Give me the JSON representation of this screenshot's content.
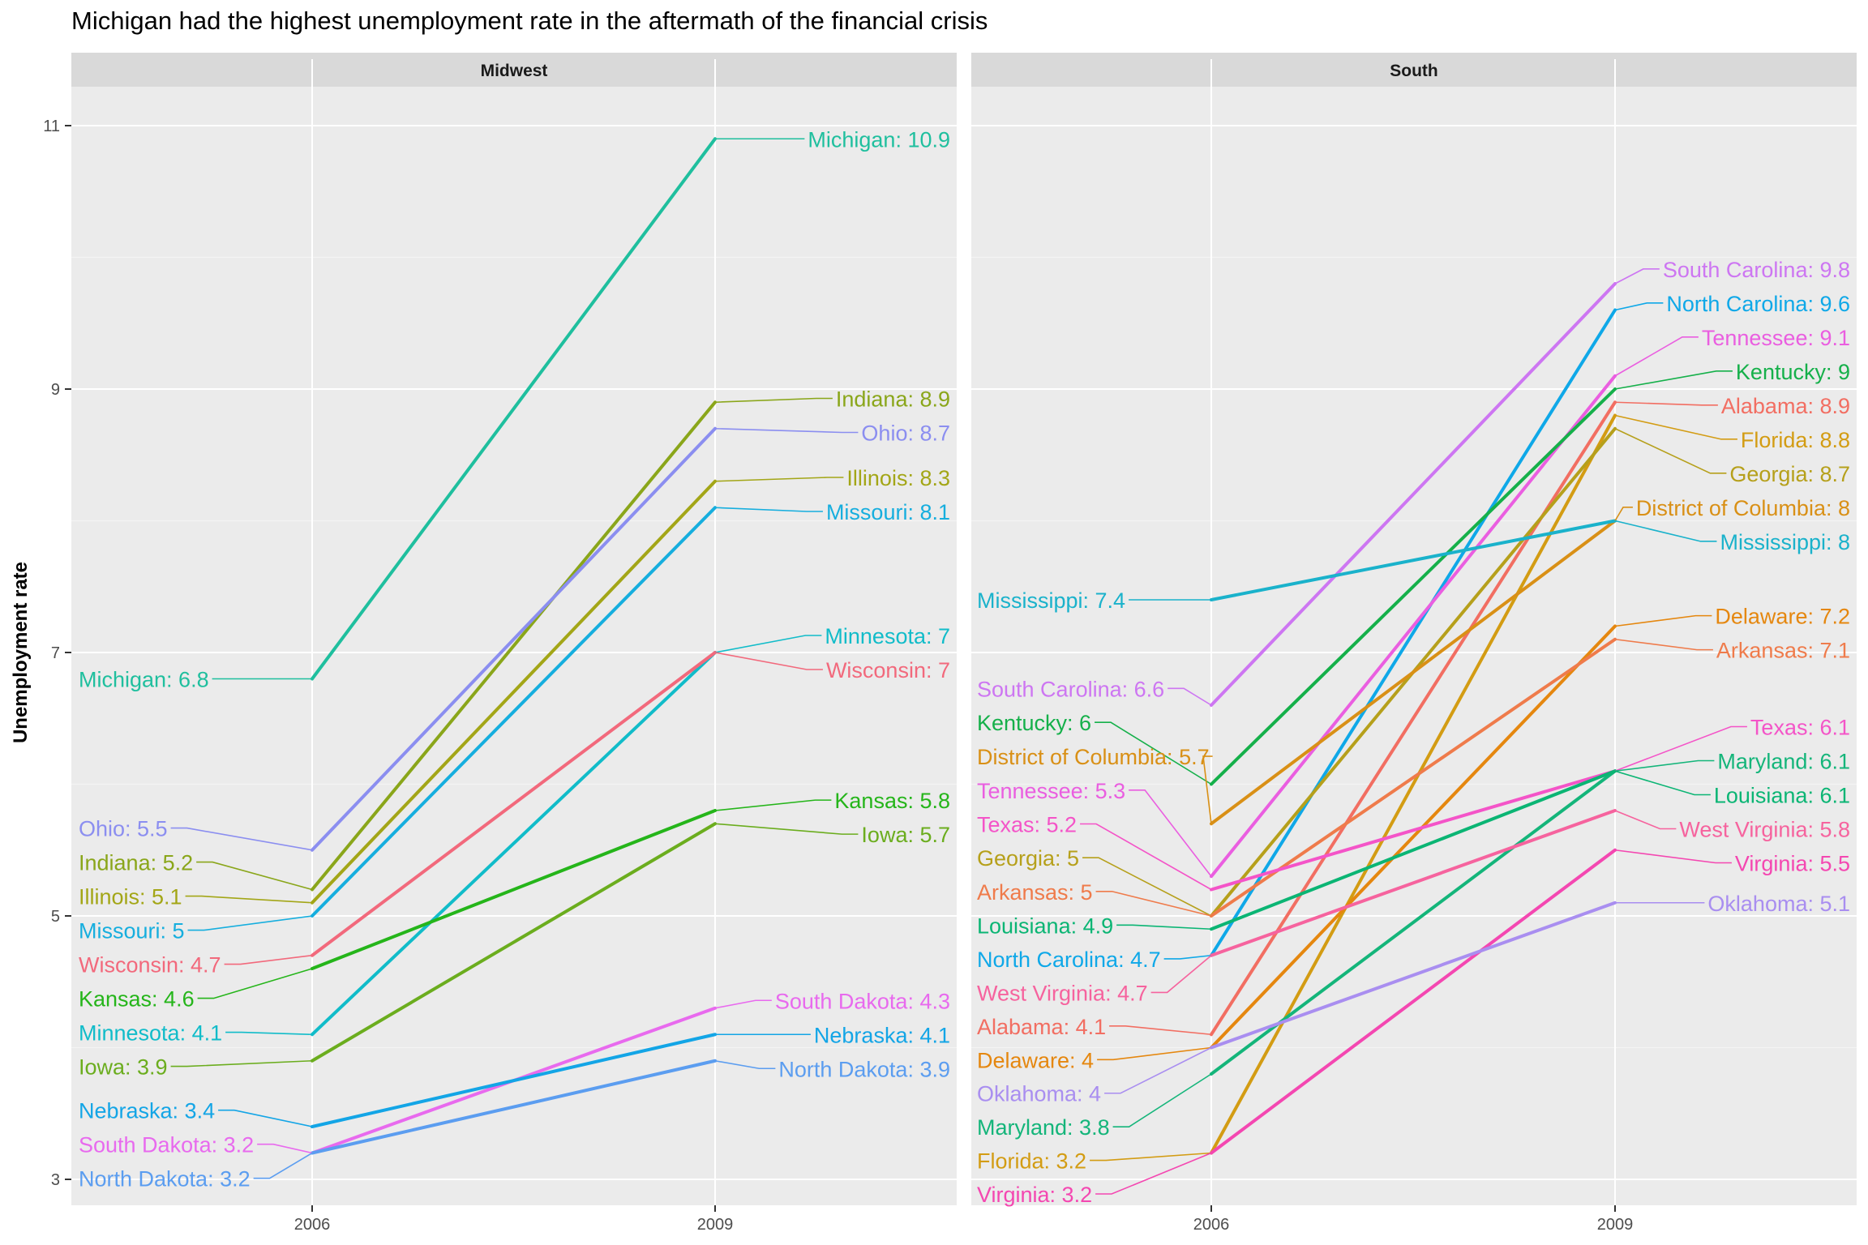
{
  "chart_data": {
    "type": "line",
    "title": "Michigan had the highest unemployment rate in the aftermath of the financial crisis",
    "xlabel": "",
    "ylabel": "Unemployment rate",
    "x": [
      "2006",
      "2009"
    ],
    "y_ticks": [
      "3",
      "5",
      "7",
      "9",
      "11"
    ],
    "ylim": [
      3,
      11
    ],
    "grid": true,
    "legend": "none",
    "panels": [
      {
        "name": "Midwest",
        "series": [
          {
            "name": "Michigan",
            "values": [
              6.8,
              10.9
            ],
            "color": "#1fbf9e",
            "left_label": "Michigan: 6.8",
            "right_label": "Michigan: 10.9"
          },
          {
            "name": "Indiana",
            "values": [
              5.2,
              8.9
            ],
            "color": "#8aa61a",
            "left_label": "Indiana: 5.2",
            "right_label": "Indiana: 8.9"
          },
          {
            "name": "Ohio",
            "values": [
              5.5,
              8.7
            ],
            "color": "#8b8ef0",
            "left_label": "Ohio: 5.5",
            "right_label": "Ohio: 8.7"
          },
          {
            "name": "Illinois",
            "values": [
              5.1,
              8.3
            ],
            "color": "#a3a617",
            "left_label": "Illinois: 5.1",
            "right_label": "Illinois: 8.3"
          },
          {
            "name": "Missouri",
            "values": [
              5,
              8.1
            ],
            "color": "#16aede",
            "left_label": "Missouri: 5",
            "right_label": "Missouri: 8.1"
          },
          {
            "name": "Minnesota",
            "values": [
              4.1,
              7
            ],
            "color": "#11bcc9",
            "left_label": "Minnesota: 4.1",
            "right_label": "Minnesota: 7"
          },
          {
            "name": "Wisconsin",
            "values": [
              4.7,
              7
            ],
            "color": "#f2697c",
            "left_label": "Wisconsin: 4.7",
            "right_label": "Wisconsin: 7"
          },
          {
            "name": "Kansas",
            "values": [
              4.6,
              5.8
            ],
            "color": "#25b51a",
            "left_label": "Kansas: 4.6",
            "right_label": "Kansas: 5.8"
          },
          {
            "name": "Iowa",
            "values": [
              3.9,
              5.7
            ],
            "color": "#6bad1e",
            "left_label": "Iowa: 3.9",
            "right_label": "Iowa: 5.7"
          },
          {
            "name": "South Dakota",
            "values": [
              3.2,
              4.3
            ],
            "color": "#e86aee",
            "left_label": "South Dakota: 3.2",
            "right_label": "South Dakota: 4.3"
          },
          {
            "name": "Nebraska",
            "values": [
              3.4,
              4.1
            ],
            "color": "#13a5e6",
            "left_label": "Nebraska: 3.4",
            "right_label": "Nebraska: 4.1"
          },
          {
            "name": "North Dakota",
            "values": [
              3.2,
              3.9
            ],
            "color": "#5b9df0",
            "left_label": "North Dakota: 3.2",
            "right_label": "North Dakota: 3.9"
          }
        ]
      },
      {
        "name": "South",
        "series": [
          {
            "name": "South Carolina",
            "values": [
              6.6,
              9.8
            ],
            "color": "#cd76f2",
            "left_label": "South Carolina: 6.6",
            "right_label": "South Carolina: 9.8"
          },
          {
            "name": "North Carolina",
            "values": [
              4.7,
              9.6
            ],
            "color": "#0fa8e8",
            "left_label": "North Carolina: 4.7",
            "right_label": "North Carolina: 9.6"
          },
          {
            "name": "Tennessee",
            "values": [
              5.3,
              9.1
            ],
            "color": "#ea5ee0",
            "left_label": "Tennessee: 5.3",
            "right_label": "Tennessee: 9.1"
          },
          {
            "name": "Kentucky",
            "values": [
              6,
              9
            ],
            "color": "#15b04a",
            "left_label": "Kentucky: 6",
            "right_label": "Kentucky: 9"
          },
          {
            "name": "Alabama",
            "values": [
              4.1,
              8.9
            ],
            "color": "#f26e62",
            "left_label": "Alabama: 4.1",
            "right_label": "Alabama: 8.9"
          },
          {
            "name": "Florida",
            "values": [
              3.2,
              8.8
            ],
            "color": "#d39c13",
            "left_label": "Florida: 3.2",
            "right_label": "Florida: 8.8"
          },
          {
            "name": "Georgia",
            "values": [
              5,
              8.7
            ],
            "color": "#b6a01b",
            "left_label": "Georgia: 5",
            "right_label": "Georgia: 8.7"
          },
          {
            "name": "District of Columbia",
            "values": [
              5.7,
              8
            ],
            "color": "#d99016",
            "left_label": "District of Columbia: 5.7",
            "right_label": "District of Columbia: 8"
          },
          {
            "name": "Mississippi",
            "values": [
              7.4,
              8
            ],
            "color": "#1ab2cb",
            "left_label": "Mississippi: 7.4",
            "right_label": "Mississippi: 8"
          },
          {
            "name": "Delaware",
            "values": [
              4,
              7.2
            ],
            "color": "#e5870f",
            "left_label": "Delaware: 4",
            "right_label": "Delaware: 7.2"
          },
          {
            "name": "Arkansas",
            "values": [
              5,
              7.1
            ],
            "color": "#ef7b4b",
            "left_label": "Arkansas: 5",
            "right_label": "Arkansas: 7.1"
          },
          {
            "name": "Texas",
            "values": [
              5.2,
              6.1
            ],
            "color": "#f454c8",
            "left_label": "Texas: 5.2",
            "right_label": "Texas: 6.1"
          },
          {
            "name": "Maryland",
            "values": [
              3.8,
              6.1
            ],
            "color": "#14b57a",
            "left_label": "Maryland: 3.8",
            "right_label": "Maryland: 6.1"
          },
          {
            "name": "Louisiana",
            "values": [
              4.9,
              6.1
            ],
            "color": "#0bb574",
            "left_label": "Louisiana: 4.9",
            "right_label": "Louisiana: 6.1"
          },
          {
            "name": "West Virginia",
            "values": [
              4.7,
              5.8
            ],
            "color": "#f6639e",
            "left_label": "West Virginia: 4.7",
            "right_label": "West Virginia: 5.8"
          },
          {
            "name": "Virginia",
            "values": [
              3.2,
              5.5
            ],
            "color": "#f447b1",
            "left_label": "Virginia: 3.2",
            "right_label": "Virginia: 5.5"
          },
          {
            "name": "Oklahoma",
            "values": [
              4,
              5.1
            ],
            "color": "#a98ef0",
            "left_label": "Oklahoma: 4",
            "right_label": "Oklahoma: 5.1"
          }
        ]
      }
    ]
  }
}
